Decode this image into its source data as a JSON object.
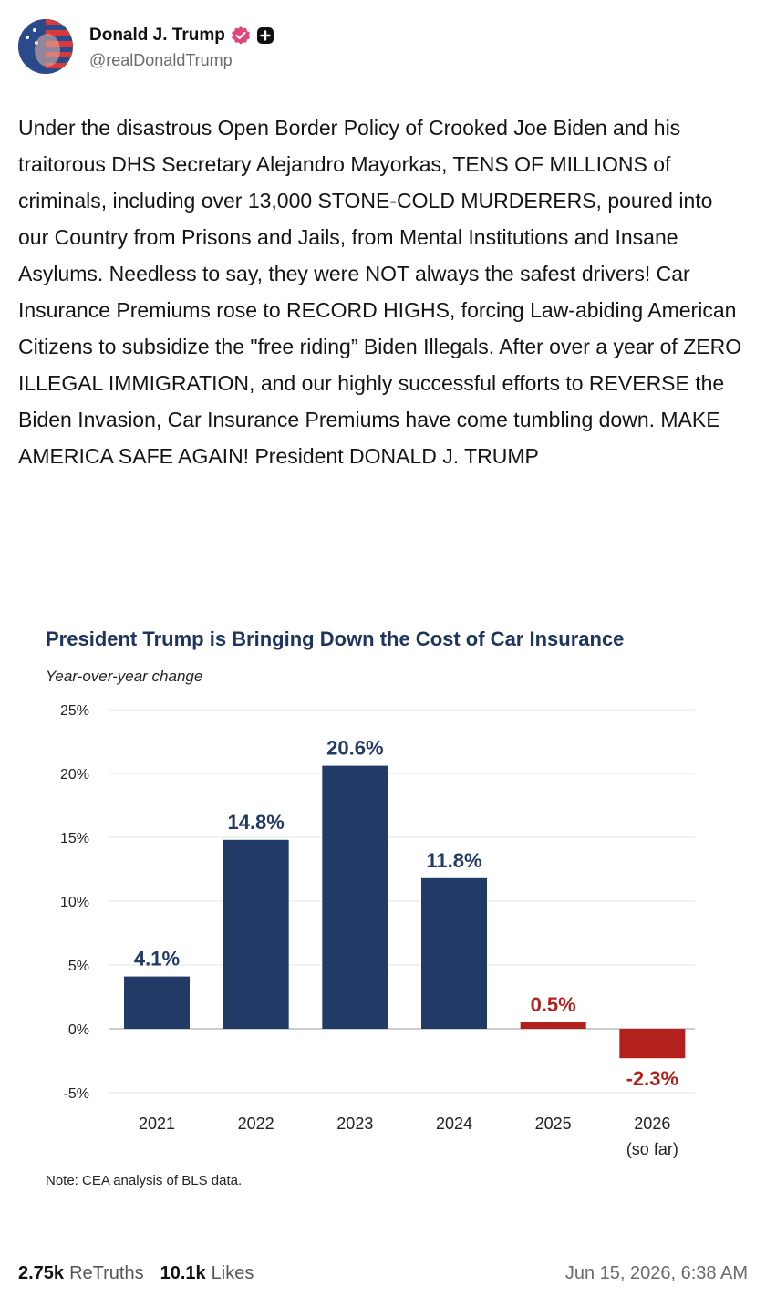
{
  "post": {
    "author_name": "Donald J. Trump",
    "author_handle": "@realDonaldTrump",
    "avatar_icon": "avatar-flag-face-icon",
    "verified_icon": "verified-badge-icon",
    "plus_icon": "plus-badge-icon",
    "text": "Under the disastrous Open Border Policy of Crooked Joe Biden and his traitorous DHS Secretary Alejandro Mayorkas, TENS OF MILLIONS of criminals, including over 13,000 STONE-COLD MURDERERS, poured into our Country from Prisons and Jails, from Mental Institutions and Insane Asylums. Needless to say, they were NOT always the safest drivers! Car Insurance Premiums rose to RECORD HIGHS, forcing Law-abiding American Citizens to subsidize the \"free riding” Biden Illegals. After over a year of ZERO ILLEGAL IMMIGRATION, and our highly successful efforts to REVERSE the Biden Invasion, Car Insurance Premiums have come tumbling down. MAKE AMERICA SAFE AGAIN! President DONALD J. TRUMP"
  },
  "stats": {
    "retruths_count": "2.75k",
    "retruths_label": "ReTruths",
    "likes_count": "10.1k",
    "likes_label": "Likes",
    "timestamp": "Jun 15, 2026, 6:38 AM"
  },
  "colors": {
    "positive_bar": "#213a66",
    "negative_bar": "#b3211c",
    "title": "#1f3560",
    "verified": "#e0457b"
  },
  "chart_data": {
    "type": "bar",
    "title": "President Trump is Bringing Down the Cost of Car Insurance",
    "subtitle": "Year-over-year change",
    "note": "Note: CEA analysis of BLS data.",
    "categories": [
      "2021",
      "2022",
      "2023",
      "2024",
      "2025",
      "2026"
    ],
    "category_sublabels": [
      "",
      "",
      "",
      "",
      "",
      "(so far)"
    ],
    "values": [
      4.1,
      14.8,
      20.6,
      11.8,
      0.5,
      -2.3
    ],
    "value_labels": [
      "4.1%",
      "14.8%",
      "20.6%",
      "11.8%",
      "0.5%",
      "-2.3%"
    ],
    "ylim": [
      -5,
      25
    ],
    "yticks": [
      -5,
      0,
      5,
      10,
      15,
      20,
      25
    ],
    "ytick_labels": [
      "-5%",
      "0%",
      "5%",
      "10%",
      "15%",
      "20%",
      "25%"
    ],
    "grid": true,
    "xlabel": "",
    "ylabel": ""
  }
}
